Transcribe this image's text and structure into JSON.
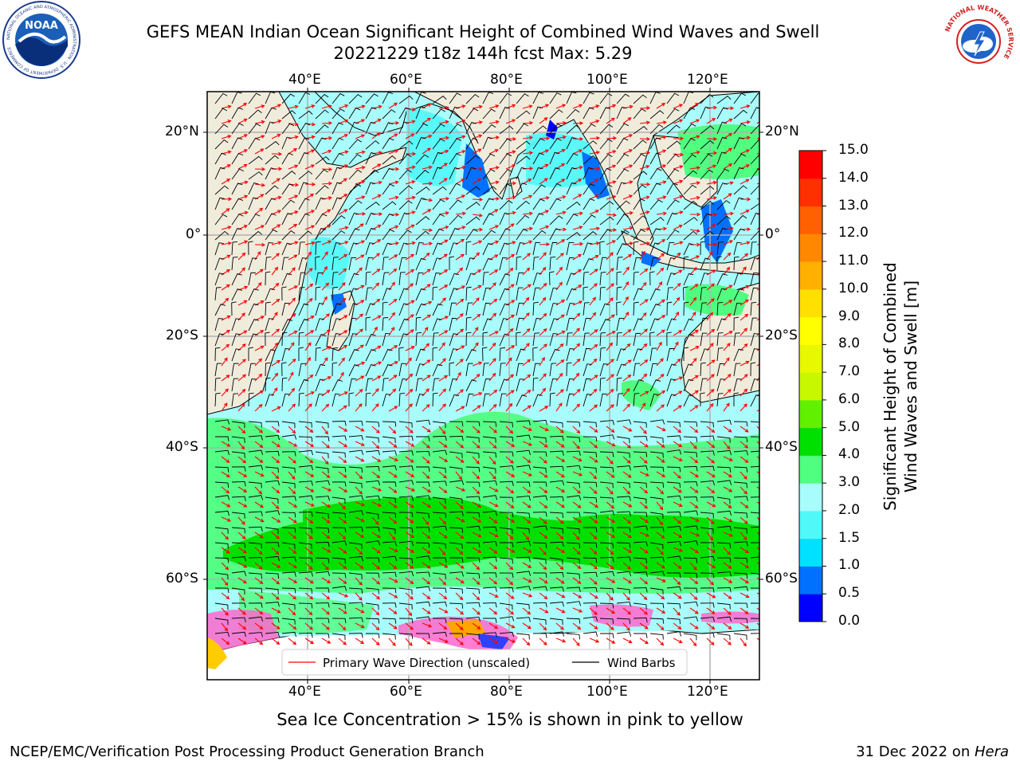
{
  "header": {
    "title_line1": "GEFS MEAN Indian Ocean Significant Height of Combined Wind Waves and Swell",
    "title_line2": "20221229 t18z 144h fcst   Max: 5.29",
    "noaa_logo_text": "NOAA",
    "noaa_ring_text": "NATIONAL OCEANIC AND ATMOSPHERIC ADMINISTRATION · U.S. DEPARTMENT OF COMMERCE",
    "nws_ring_text": "NATIONAL WEATHER SERVICE"
  },
  "map": {
    "lon_ticks": [
      "40°E",
      "60°E",
      "80°E",
      "100°E",
      "120°E"
    ],
    "lat_ticks": [
      "20°N",
      "0°",
      "20°S",
      "40°S",
      "60°S"
    ],
    "land_color": "#efecdc",
    "legend": {
      "wave_label": "Primary Wave Direction (unscaled)",
      "wind_label": "Wind Barbs",
      "wave_color": "#ff0000",
      "wind_color": "#000000"
    }
  },
  "colorbar": {
    "label_line1": "Significant Height of Combined",
    "label_line2": "Wind Waves and Swell [m]",
    "levels": [
      "0.0",
      "0.5",
      "1.0",
      "1.5",
      "2.0",
      "3.0",
      "4.0",
      "5.0",
      "6.0",
      "7.0",
      "8.0",
      "9.0",
      "10.0",
      "11.0",
      "12.0",
      "13.0",
      "14.0",
      "15.0"
    ],
    "colors": [
      "#0000ff",
      "#0070ff",
      "#00e0ff",
      "#50f8f8",
      "#a8fcfc",
      "#50ff80",
      "#00e000",
      "#60f000",
      "#c8f800",
      "#e8f800",
      "#ffff00",
      "#ffe000",
      "#ffb000",
      "#ff8800",
      "#ff6000",
      "#ff3000",
      "#ff0000"
    ]
  },
  "chart_data": {
    "type": "map",
    "field": "Significant Height of Combined Wind Waves and Swell",
    "units": "m",
    "run": "20221229 t18z",
    "forecast_hour": "144h",
    "max_value": 5.29,
    "lon_range": [
      20,
      130
    ],
    "lat_range": [
      -72,
      27
    ],
    "colorbar_range": [
      0,
      15
    ]
  },
  "footer": {
    "note": "Sea Ice Concentration > 15% is shown in pink to yellow",
    "credit": "NCEP/EMC/Verification Post Processing Product Generation Branch",
    "date": "31 Dec 2022 on ",
    "machine": "Hera"
  }
}
